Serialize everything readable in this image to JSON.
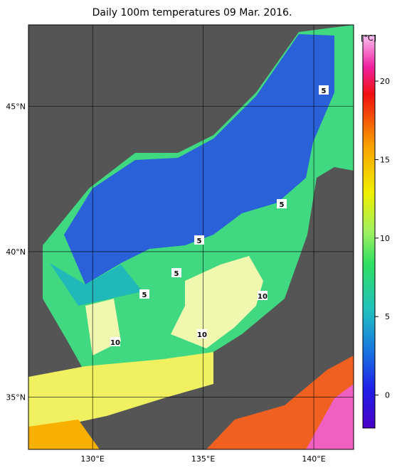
{
  "map": {
    "title": "Daily 100m temperatures 09 Mar. 2016.",
    "lon_lim": [
      127.1,
      141.8
    ],
    "lat_lim": [
      33.2,
      47.8
    ],
    "lon_ticks": [
      {
        "value": 130,
        "label": "130°E"
      },
      {
        "value": 135,
        "label": "135°E"
      },
      {
        "value": 140,
        "label": "140°E"
      }
    ],
    "lat_ticks": [
      {
        "value": 35,
        "label": "35°N"
      },
      {
        "value": 40,
        "label": "40°N"
      },
      {
        "value": 45,
        "label": "45°N"
      }
    ],
    "colorbar": {
      "unit": "[°C]",
      "lim": [
        -2.1,
        22.9
      ],
      "ticks": [
        0,
        5,
        10,
        15,
        20
      ]
    },
    "contour_labels": [
      5,
      5,
      5,
      5,
      5,
      10,
      10,
      10
    ]
  }
}
